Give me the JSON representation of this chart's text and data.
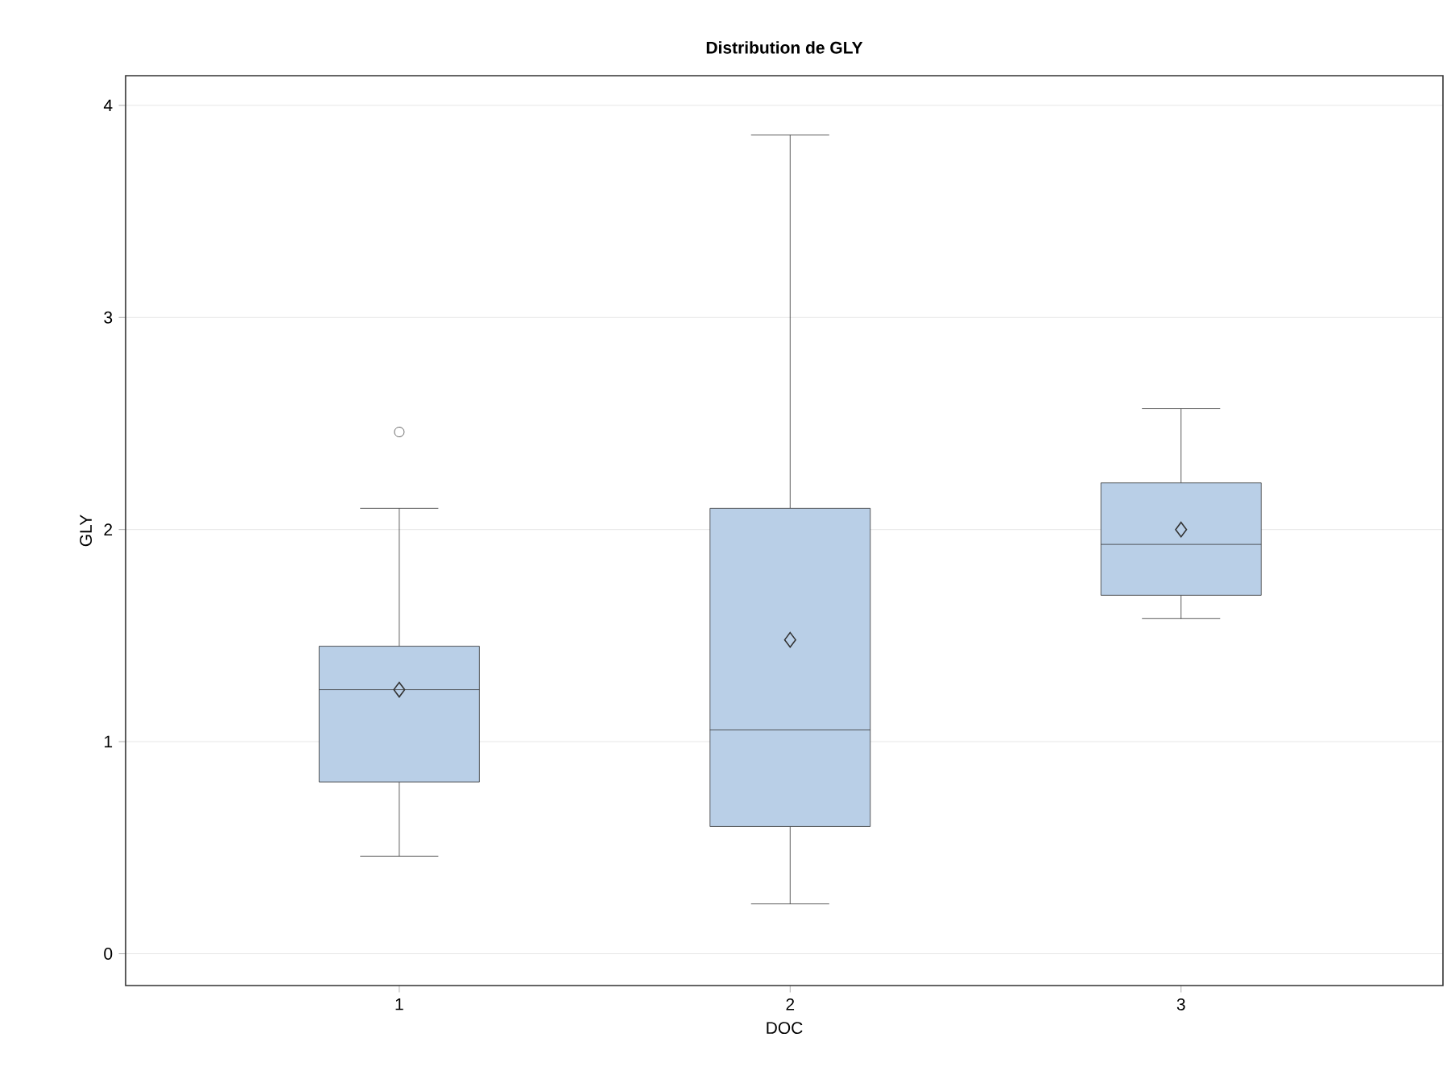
{
  "chart_data": {
    "type": "box",
    "title": "Distribution de GLY",
    "xlabel": "DOC",
    "ylabel": "GLY",
    "categories": [
      "1",
      "2",
      "3"
    ],
    "color": "#b9cfe7",
    "boxes": [
      {
        "low": 0.46,
        "q1": 0.81,
        "median": 1.245,
        "q3": 1.45,
        "high": 2.1,
        "mean": 1.245,
        "outliers": [
          2.46
        ]
      },
      {
        "low": 0.235,
        "q1": 0.6,
        "median": 1.055,
        "q3": 2.1,
        "high": 3.86,
        "mean": 1.48
      },
      {
        "low": 1.58,
        "q1": 1.69,
        "median": 1.93,
        "q3": 2.22,
        "high": 2.57,
        "mean": 2.0
      }
    ],
    "ylim": [
      -0.15,
      4.14
    ],
    "yticks": [
      0,
      1,
      2,
      3,
      4
    ],
    "grid": "y"
  }
}
